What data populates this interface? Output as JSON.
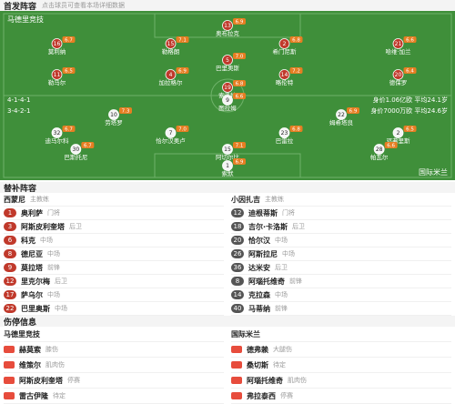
{
  "header": {
    "title": "首发阵容",
    "note": "点击球员可查看本场详细数据"
  },
  "home": {
    "name": "马德里竞技",
    "formation": "4-1-4-1",
    "info": "身价1.06亿欧 平均24.1岁",
    "rows": [
      [
        {
          "number": "13",
          "name": "奥布拉克",
          "rating": "6.9"
        }
      ],
      [
        {
          "number": "16",
          "name": "莫利纳",
          "rating": "6.7"
        },
        {
          "number": "15",
          "name": "勒格朗",
          "rating": "7.1"
        },
        {
          "number": "2",
          "name": "希门尼斯",
          "rating": "6.8"
        },
        {
          "number": "21",
          "name": "哈维·加兰",
          "rating": "6.6"
        }
      ],
      [
        {
          "number": "5",
          "name": "巴里奥斯",
          "rating": "7.0"
        }
      ],
      [
        {
          "number": "11",
          "name": "勒马尔",
          "rating": "6.5"
        },
        {
          "number": "4",
          "name": "加拉格尔",
          "rating": "6.9"
        },
        {
          "number": "14",
          "name": "略伦特",
          "rating": "7.2"
        },
        {
          "number": "20",
          "name": "德保罗",
          "rating": "6.4"
        }
      ],
      [
        {
          "number": "19",
          "name": "索洛特",
          "rating": "6.8"
        }
      ]
    ]
  },
  "away": {
    "name": "国际米兰",
    "formation": "3-4-2-1",
    "info": "身价7000万欧 平均24.6岁",
    "rows": [
      [
        {
          "number": "9",
          "name": "图拉姆",
          "rating": "6.6"
        }
      ],
      [
        {
          "number": "10",
          "name": "劳塔罗",
          "rating": "7.3"
        },
        {
          "number": "22",
          "name": "姆希塔良",
          "rating": "6.9"
        }
      ],
      [
        {
          "number": "32",
          "name": "迪马尔科",
          "rating": "6.7"
        },
        {
          "number": "7",
          "name": "恰尔汉奥卢",
          "rating": "7.0"
        },
        {
          "number": "23",
          "name": "巴雷拉",
          "rating": "6.8"
        },
        {
          "number": "2",
          "name": "邓弗里斯",
          "rating": "6.5"
        }
      ],
      [
        {
          "number": "30",
          "name": "巴斯托尼",
          "rating": "6.7"
        },
        {
          "number": "15",
          "name": "阿切尔比",
          "rating": "7.1"
        },
        {
          "number": "28",
          "name": "帕瓦尔",
          "rating": "6.6"
        }
      ],
      [
        {
          "number": "1",
          "name": "索默",
          "rating": "6.9"
        }
      ]
    ]
  },
  "subs": {
    "title": "替补阵容",
    "home": {
      "coach": "西蒙尼",
      "coach_role": "主教练",
      "players": [
        {
          "number": "1",
          "name": "奥利萨",
          "position": "门将"
        },
        {
          "number": "3",
          "name": "阿斯皮利奎塔",
          "position": "后卫"
        },
        {
          "number": "6",
          "name": "科克",
          "position": "中场"
        },
        {
          "number": "8",
          "name": "德尼亚",
          "position": "中场"
        },
        {
          "number": "9",
          "name": "莫拉塔",
          "position": "前锋"
        },
        {
          "number": "12",
          "name": "里克尔梅",
          "position": "后卫"
        },
        {
          "number": "17",
          "name": "萨乌尔",
          "position": "中场"
        },
        {
          "number": "22",
          "name": "巴里奥斯",
          "position": "中场"
        }
      ]
    },
    "away": {
      "coach": "小因扎吉",
      "coach_role": "主教练",
      "players": [
        {
          "number": "12",
          "name": "迪根蒂斯",
          "position": "门将"
        },
        {
          "number": "18",
          "name": "吉尔·卡洛斯",
          "position": "后卫"
        },
        {
          "number": "20",
          "name": "恰尔汉",
          "position": "中场"
        },
        {
          "number": "26",
          "name": "阿斯拉尼",
          "position": "中场"
        },
        {
          "number": "36",
          "name": "达米安",
          "position": "后卫"
        },
        {
          "number": "8",
          "name": "阿瑙托维奇",
          "position": "前锋"
        },
        {
          "number": "14",
          "name": "克拉森",
          "position": "中场"
        },
        {
          "number": "40",
          "name": "马蒂纳",
          "position": "前锋"
        }
      ]
    }
  },
  "injuries": {
    "title": "伤停信息",
    "home": {
      "name": "马德里竞技",
      "players": [
        {
          "name": "赫莫索",
          "status": "膝伤"
        },
        {
          "name": "维策尔",
          "status": "肌肉伤"
        },
        {
          "name": "阿斯皮利奎塔",
          "status": "停赛"
        },
        {
          "name": "雷古伊隆",
          "status": "待定"
        }
      ]
    },
    "away": {
      "name": "国际米兰",
      "players": [
        {
          "name": "德弗赖",
          "status": "大腿伤"
        },
        {
          "name": "桑切斯",
          "status": "待定"
        },
        {
          "name": "阿瑙托维奇",
          "status": "肌肉伤"
        },
        {
          "name": "弗拉泰西",
          "status": "停赛"
        }
      ]
    }
  }
}
